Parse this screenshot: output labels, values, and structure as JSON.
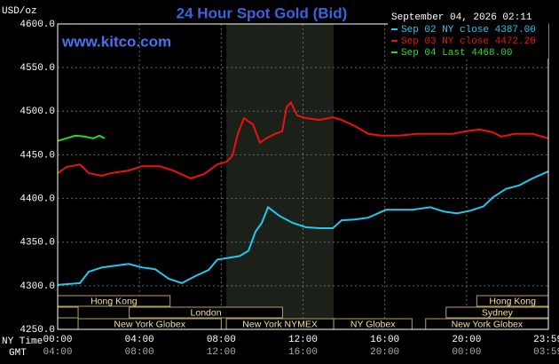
{
  "chart_data": {
    "type": "line",
    "title": "24 Hour Spot Gold (Bid)",
    "source": "www.kitco.com",
    "y_label": "USD/oz",
    "timestamp": "September 04, 2026 02:11",
    "x_label_ny": "NY Time",
    "x_label_gmt": "GMT",
    "xlim": [
      0,
      24
    ],
    "ylim": [
      4250,
      4600
    ],
    "xticks": [
      {
        "value": 0,
        "label": "00:00"
      },
      {
        "value": 4,
        "label": "04:00"
      },
      {
        "value": 8,
        "label": "08:00"
      },
      {
        "value": 12,
        "label": "12:00"
      },
      {
        "value": 16,
        "label": "16:00"
      },
      {
        "value": 20,
        "label": "20:00"
      },
      {
        "value": 23.983,
        "label": "23:59"
      }
    ],
    "x_gmt_labels": [
      "04:00",
      "08:00",
      "12:00",
      "16:00",
      "20:00",
      "00:00",
      "03:59"
    ],
    "yticks": [
      {
        "value": 4250,
        "label": "4250.0"
      },
      {
        "value": 4300,
        "label": "4300.0"
      },
      {
        "value": 4350,
        "label": "4350.0"
      },
      {
        "value": 4400,
        "label": "4400.0"
      },
      {
        "value": 4450,
        "label": "4450.0"
      },
      {
        "value": 4500,
        "label": "4500.0"
      },
      {
        "value": 4550,
        "label": "4550.0"
      },
      {
        "value": 4600,
        "label": "4600.0"
      }
    ],
    "grid": true,
    "highlight_xrange": [
      8.25,
      13.5
    ],
    "sessions": [
      {
        "label": "Hong Kong",
        "start": 0,
        "end": 5.5,
        "row": 0
      },
      {
        "label": null,
        "start": 0,
        "end": 1,
        "row": 1
      },
      {
        "label": "London",
        "start": 3.5,
        "end": 11,
        "row": 1
      },
      {
        "label": "New York Globex",
        "start": 1,
        "end": 8,
        "row": 2
      },
      {
        "label": "New York NYMEX",
        "start": 8.25,
        "end": 13.5,
        "row": 2
      },
      {
        "label": "NY Globex",
        "start": 13.5,
        "end": 17.33,
        "row": 2
      },
      {
        "label": "Hong Kong",
        "start": 20.5,
        "end": 24,
        "row": 0
      },
      {
        "label": "Sydney",
        "start": 19,
        "end": 24,
        "row": 1
      },
      {
        "label": "New York Globex",
        "start": 18,
        "end": 24,
        "row": 2
      }
    ],
    "series": [
      {
        "name": "Sep 02 NY close 4387.00",
        "color": "#22c8f0",
        "x": [
          0,
          1.09,
          1.52,
          2.17,
          2.82,
          3.47,
          4.12,
          4.77,
          5.43,
          6.08,
          6.73,
          7.38,
          7.81,
          8.38,
          8.9,
          9.33,
          9.68,
          9.98,
          10.29,
          10.85,
          11.5,
          12.15,
          12.8,
          13.46,
          13.89,
          14.54,
          15.19,
          16.06,
          16.71,
          17.36,
          18.23,
          18.88,
          19.53,
          20.18,
          20.83,
          21.27,
          21.92,
          22.57,
          23.22,
          24
        ],
        "values": [
          4301,
          4303,
          4316,
          4321,
          4323,
          4325,
          4321,
          4319,
          4308,
          4303,
          4311,
          4318,
          4330,
          4332,
          4334,
          4340,
          4362,
          4372,
          4390,
          4380,
          4372,
          4367,
          4366,
          4366,
          4375,
          4376,
          4378,
          4387,
          4387,
          4387,
          4390,
          4385,
          4383,
          4386,
          4391,
          4401,
          4411,
          4415,
          4423,
          4431
        ]
      },
      {
        "name": "Sep 03 NY close 4472.20",
        "color": "#ee1111",
        "x": [
          0,
          0.43,
          1.09,
          1.52,
          2.17,
          2.6,
          3.47,
          4.12,
          4.99,
          5.64,
          6.51,
          7.16,
          7.81,
          8.25,
          8.55,
          8.81,
          9.11,
          9.55,
          9.9,
          10.2,
          10.63,
          10.98,
          11.2,
          11.41,
          11.72,
          12.15,
          12.8,
          13.46,
          13.89,
          14.54,
          15.19,
          15.84,
          16.71,
          17.58,
          18.45,
          19.31,
          19.97,
          20.62,
          21.27,
          21.7,
          22.35,
          23.22,
          24
        ],
        "values": [
          4429,
          4436,
          4439,
          4429,
          4426,
          4429,
          4432,
          4437,
          4437,
          4432,
          4423,
          4428,
          4439,
          4442,
          4449,
          4474,
          4492,
          4485,
          4464,
          4469,
          4474,
          4477,
          4505,
          4510,
          4495,
          4492,
          4490,
          4493,
          4490,
          4483,
          4474,
          4472,
          4472,
          4474,
          4474,
          4474,
          4477,
          4479,
          4476,
          4471,
          4474,
          4474,
          4469
        ]
      },
      {
        "name": "Sep 04 Last 4468.00",
        "color": "#22dd22",
        "x": [
          0,
          0.43,
          0.87,
          1.3,
          1.74,
          2.04,
          2.3
        ],
        "values": [
          4466,
          4469,
          4472,
          4471,
          4469,
          4472,
          4469
        ]
      }
    ]
  }
}
